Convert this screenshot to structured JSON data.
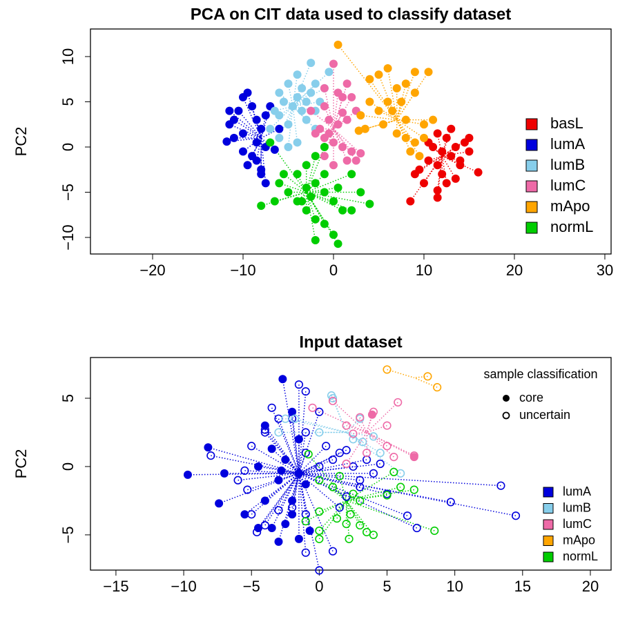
{
  "chart_data": [
    {
      "type": "scatter",
      "title": "PCA on CIT data used to classify dataset",
      "y_label": "PC2",
      "xlim": [
        -26.87,
        30.69
      ],
      "ylim": [
        -11.83,
        13.05
      ],
      "xticks": [
        {
          "value": -20,
          "label": "−20"
        },
        {
          "value": -10,
          "label": "−10"
        },
        0,
        10,
        20,
        30
      ],
      "yticks": [
        {
          "value": -10,
          "label": "−10"
        },
        {
          "value": -5,
          "label": "−5"
        },
        0,
        5,
        10
      ],
      "legend": "right",
      "series": [
        {
          "name": "basL",
          "color": "#ee0000",
          "center": [
            12,
            -1
          ],
          "x": [
            8.5,
            11.5,
            11.5,
            10,
            9,
            9.5,
            10.5,
            11.5,
            12,
            13,
            13.5,
            12.5,
            11.5,
            13,
            14.5,
            15,
            16,
            14,
            12,
            11,
            10.5,
            13.5,
            12.5,
            14,
            15
          ],
          "y": [
            -6,
            -5.6,
            -4.8,
            -4,
            -3,
            -2.5,
            -1.5,
            -2,
            -3,
            -1,
            0,
            1,
            1.5,
            2,
            0.5,
            1,
            -2.8,
            -2,
            -0.5,
            0,
            0.5,
            -3.5,
            -4,
            -1.5,
            -0.5
          ]
        },
        {
          "name": "lumA",
          "color": "#0000dd",
          "center": [
            -8,
            1
          ],
          "x": [
            -11.8,
            -11.5,
            -11,
            -10.5,
            -10,
            -9.5,
            -9,
            -8.5,
            -8,
            -7.5,
            -9,
            -10,
            -8.5,
            -8,
            -7.5,
            -8,
            -7,
            -6,
            -10,
            -11,
            -9.5,
            -8.5,
            -6.5,
            -7.5,
            -11.5
          ],
          "y": [
            0.6,
            2.5,
            3,
            4,
            5.5,
            6,
            4.5,
            3,
            2,
            0,
            -1,
            -0.5,
            -1.5,
            -2.5,
            -4,
            -3,
            4.5,
            2,
            1.5,
            1,
            -2,
            0.5,
            -0.3,
            3.5,
            4
          ]
        },
        {
          "name": "lumB",
          "color": "#87ceeb",
          "center": [
            -4.5,
            4.5
          ],
          "x": [
            -6,
            -5,
            -4,
            -3.5,
            -2.5,
            -2,
            -1,
            -0.5,
            -5.5,
            -4.5,
            -3.5,
            -3,
            -2,
            -6.5,
            -7,
            -6,
            -5,
            -4,
            -5,
            -3,
            -2,
            -6,
            -4,
            -2.5,
            -1.5
          ],
          "y": [
            6,
            7,
            8,
            6.5,
            6,
            7,
            6.5,
            8.3,
            5,
            4.5,
            4,
            5,
            4,
            4,
            2,
            1,
            0,
            0.5,
            2.5,
            3,
            2,
            3.5,
            5.5,
            9.3,
            5
          ]
        },
        {
          "name": "lumC",
          "color": "#ee6aa7",
          "center": [
            0,
            2
          ],
          "x": [
            0,
            -1,
            0.5,
            1,
            2,
            2.5,
            1.5,
            0.5,
            -0.5,
            -1.5,
            -2,
            -1,
            0,
            1,
            2,
            1.5,
            0,
            -1,
            3,
            2.5,
            -2.5,
            1.5,
            1,
            -1,
            -0.5
          ],
          "y": [
            9.2,
            6.5,
            6,
            5.5,
            5.5,
            4,
            3,
            2.5,
            3,
            2,
            1.5,
            1,
            0.5,
            0,
            -0.5,
            -1.5,
            -2,
            -1,
            -0.7,
            -1.5,
            4,
            7,
            3.8,
            4.5,
            1.5
          ]
        },
        {
          "name": "mApo",
          "color": "#ffa500",
          "center": [
            7,
            3
          ],
          "x": [
            0.5,
            4,
            5,
            6,
            7,
            8,
            9,
            10.5,
            9,
            7.5,
            6,
            5,
            4,
            3.5,
            3,
            5.5,
            7,
            8,
            9,
            10,
            8.5,
            9.5,
            10,
            11,
            8,
            2.8,
            6.5
          ],
          "y": [
            11.3,
            7.5,
            8,
            8.7,
            6.5,
            7,
            8.3,
            8.3,
            6,
            5,
            5,
            4,
            5,
            2,
            3.5,
            2.5,
            1.5,
            1,
            0.5,
            1,
            -0.5,
            -1,
            2.5,
            3,
            3,
            1.8,
            4
          ]
        },
        {
          "name": "normL",
          "color": "#00cd00",
          "center": [
            -3,
            -5
          ],
          "x": [
            -2,
            0.5,
            0,
            -1,
            -2,
            -3,
            -4,
            -5,
            -6,
            -5.5,
            -4,
            -3,
            -2,
            -1,
            -1,
            -2,
            -3,
            -1,
            0,
            1,
            2,
            3,
            4,
            -8,
            -6.5,
            -7,
            -3.5,
            -2.5,
            0.5,
            2
          ],
          "y": [
            -10.3,
            -10.7,
            -9.7,
            -8.5,
            -8,
            -7,
            -6,
            -5,
            -4,
            -3,
            -3,
            -2,
            -1,
            0,
            -3,
            -4,
            -4.5,
            -5,
            -6,
            -7,
            -7,
            -5,
            -6.3,
            -6.5,
            -6,
            0.5,
            -6,
            -5.5,
            -4.5,
            -3
          ]
        }
      ]
    },
    {
      "type": "scatter",
      "title": "Input dataset",
      "y_label": "PC2",
      "xlim": [
        -16.88,
        21.53
      ],
      "ylim": [
        -7.58,
        7.98
      ],
      "xticks": [
        {
          "value": -15,
          "label": "−15"
        },
        {
          "value": -10,
          "label": "−10"
        },
        {
          "value": -5,
          "label": "−5"
        },
        0,
        5,
        10,
        15,
        20
      ],
      "yticks": [
        {
          "value": -5,
          "label": "−5"
        },
        0,
        5
      ],
      "legend": "right",
      "point_legend": {
        "title": "sample classification",
        "labels": [
          "core",
          "uncertain"
        ]
      },
      "series": [
        {
          "name": "lumA",
          "color": "#0000dd",
          "center": [
            -1.5,
            -0.5
          ],
          "core": {
            "x": [
              -9.7,
              -8.2,
              -7,
              -7.4,
              -5.5,
              -4.5,
              -3.5,
              -3,
              -2.5,
              -2,
              -2,
              -3.5,
              -2.5,
              -1.5,
              -3,
              -1.5,
              -4,
              -2,
              -2.7,
              -4,
              -1.5,
              -0.7,
              -1,
              -2.8,
              -4.5
            ],
            "y": [
              -0.6,
              1.4,
              -0.5,
              -2.7,
              -3.5,
              -4.5,
              -4.5,
              -5.5,
              -4.2,
              -3.5,
              -2.5,
              1.3,
              0.5,
              -0.5,
              -1,
              2,
              -2.5,
              4,
              6.4,
              3,
              -5.3,
              -4.7,
              -1.3,
              -0.3,
              0
            ]
          },
          "uncertain": {
            "x": [
              -8,
              -5.5,
              -6,
              -5.3,
              -5,
              -4.6,
              -4,
              -3,
              -2,
              -1,
              -1,
              0,
              1,
              1.5,
              2,
              3,
              4,
              4.5,
              5,
              6.5,
              7.2,
              9.7,
              13.4,
              14.5,
              -4,
              -3,
              -2,
              -1.5,
              -1,
              0,
              -3.5,
              -4,
              -1,
              0.5,
              1.5,
              2.5,
              3.5,
              0,
              -1,
              -5,
              3,
              1,
              2
            ],
            "y": [
              0.8,
              -0.3,
              -1,
              -1.7,
              -3.5,
              -4.8,
              -4.3,
              -3.2,
              -3,
              -3.5,
              -6.3,
              -7.6,
              -6.2,
              -3,
              -2.2,
              -1,
              -0.5,
              0.2,
              -2,
              -3.6,
              -4.5,
              -2.6,
              -1.4,
              -3.6,
              2.5,
              3.5,
              3.5,
              6,
              5.5,
              4,
              4.3,
              2.7,
              2.5,
              1.5,
              1,
              0,
              0.5,
              0,
              1,
              1.5,
              -1.5,
              0.5,
              1.2
            ]
          }
        },
        {
          "name": "lumB",
          "color": "#87ceeb",
          "center": [
            2,
            2.5
          ],
          "core": {
            "x": [],
            "y": []
          },
          "uncertain": {
            "x": [
              -3,
              -2.5,
              -1.8,
              0,
              1,
              2.5,
              3,
              4,
              4.5,
              6,
              3.2,
              0.9
            ],
            "y": [
              2.5,
              3.5,
              3.5,
              2.5,
              5,
              2,
              3.5,
              2.2,
              1,
              -0.5,
              1.8,
              5.2
            ]
          }
        },
        {
          "name": "lumC",
          "color": "#ee6aa7",
          "center": [
            3.5,
            2.5
          ],
          "core": {
            "x": [
              3.9,
              7
            ],
            "y": [
              3.8,
              0.7
            ]
          },
          "uncertain": {
            "x": [
              -0.5,
              1,
              2,
              2.5,
              3,
              4,
              5,
              5.8,
              5,
              5.5,
              7,
              3.5,
              2
            ],
            "y": [
              4.3,
              4.8,
              3,
              2.4,
              3.6,
              4,
              3,
              4.7,
              1.5,
              0.7,
              0.8,
              1,
              0.2
            ]
          }
        },
        {
          "name": "mApo",
          "color": "#ffa500",
          "center": [
            7,
            6.5
          ],
          "core": {
            "x": [],
            "y": []
          },
          "uncertain": {
            "x": [
              5,
              8,
              8.7
            ],
            "y": [
              7.1,
              6.6,
              5.8
            ]
          }
        },
        {
          "name": "normL",
          "color": "#00cd00",
          "center": [
            2,
            -2.5
          ],
          "core": {
            "x": [],
            "y": []
          },
          "uncertain": {
            "x": [
              -0.8,
              0,
              1,
              1.3,
              2,
              2.3,
              2.5,
              3,
              3.5,
              4,
              2.2,
              0,
              0,
              -1,
              0,
              5.5,
              6,
              7,
              8.5,
              5,
              1.5,
              3
            ],
            "y": [
              0.9,
              -1,
              -1.5,
              -3.8,
              -4.2,
              -3.5,
              -2,
              -2.5,
              -4.8,
              -5,
              -5.3,
              -4.7,
              -5.3,
              -4,
              -3.3,
              -0.4,
              -1.5,
              -1.7,
              -4.7,
              -2.1,
              -0.7,
              -4.3
            ]
          }
        }
      ]
    }
  ]
}
